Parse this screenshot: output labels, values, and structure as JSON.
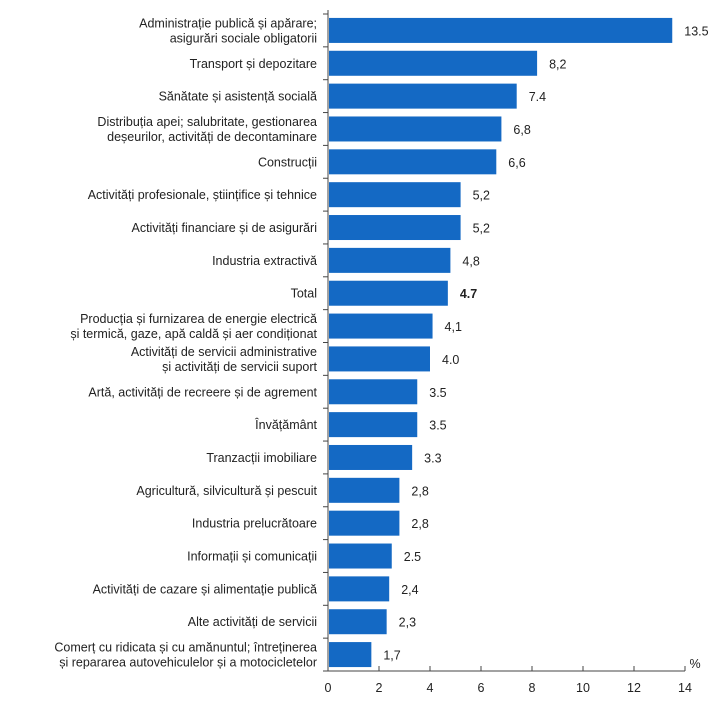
{
  "chart_data": {
    "type": "bar",
    "orientation": "horizontal",
    "title": "",
    "xlabel": "",
    "ylabel": "",
    "unit_label": "%",
    "xlim": [
      0,
      14
    ],
    "xticks": [
      "0",
      "2",
      "4",
      "6",
      "8",
      "10",
      "12",
      "14"
    ],
    "grid": false,
    "bar_color": "#1469c4",
    "categories": [
      [
        "Administrație publică și apărare;",
        "asigurări sociale obligatorii"
      ],
      [
        "Transport și depozitare"
      ],
      [
        "Sănătate și asistență socială"
      ],
      [
        "Distribuția apei; salubritate, gestionarea",
        "deșeurilor, activități de decontaminare"
      ],
      [
        "Construcții"
      ],
      [
        "Activități profesionale, științifice și tehnice"
      ],
      [
        "Activități financiare și de asigurări"
      ],
      [
        "Industria extractivă"
      ],
      [
        "Total"
      ],
      [
        "Producția și furnizarea de energie electrică",
        "și termică, gaze, apă caldă și aer condiționat"
      ],
      [
        "Activități de servicii administrative",
        "și activități de servicii suport"
      ],
      [
        "Artă, activități de recreere și de agrement"
      ],
      [
        "Învățământ"
      ],
      [
        "Tranzacții imobiliare"
      ],
      [
        "Agricultură, silvicultură și pescuit"
      ],
      [
        "Industria prelucrătoare"
      ],
      [
        "Informații și comunicații"
      ],
      [
        "Activități de cazare și alimentație publică"
      ],
      [
        "Alte activități de servicii"
      ],
      [
        "Comerț cu ridicata și cu amănuntul; întreținerea",
        "și repararea autovehiculelor și a motocicletelor"
      ]
    ],
    "values": [
      13.5,
      8.2,
      7.4,
      6.8,
      6.6,
      5.2,
      5.2,
      4.8,
      4.7,
      4.1,
      4.0,
      3.5,
      3.5,
      3.3,
      2.8,
      2.8,
      2.5,
      2.4,
      2.3,
      1.7
    ],
    "value_labels": [
      "13.5",
      "8,2",
      "7.4",
      "6,8",
      "6,6",
      "5,2",
      "5,2",
      "4,8",
      "4.7",
      "4,1",
      "4.0",
      "3.5",
      "3.5",
      "3.3",
      "2,8",
      "2,8",
      "2.5",
      "2,4",
      "2,3",
      "1,7"
    ],
    "highlight_index": 8
  }
}
